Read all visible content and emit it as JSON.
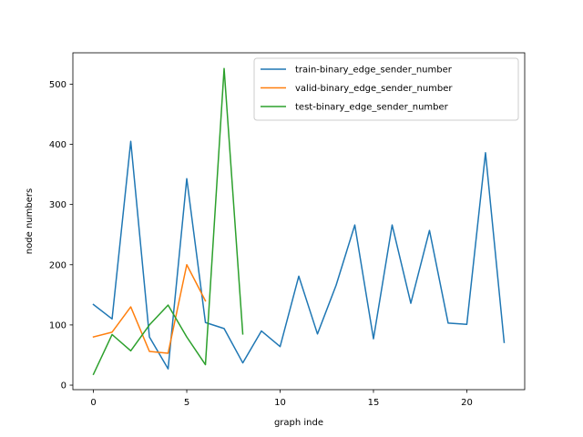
{
  "chart_data": {
    "type": "line",
    "title": "",
    "xlabel": "graph inde",
    "ylabel": "node numbers",
    "xlim": [
      -1.1,
      23.1
    ],
    "ylim": [
      -7.5,
      552
    ],
    "xticks": [
      0,
      5,
      10,
      15,
      20
    ],
    "yticks": [
      0,
      100,
      200,
      300,
      400,
      500
    ],
    "grid": false,
    "legend_position": "upper right",
    "series": [
      {
        "name": "train-binary_edge_sender_number",
        "color": "#1f77b4",
        "x": [
          0,
          1,
          2,
          3,
          4,
          5,
          6,
          7,
          8,
          9,
          10,
          11,
          12,
          13,
          14,
          15,
          16,
          17,
          18,
          19,
          20,
          21,
          22
        ],
        "y": [
          134,
          110,
          405,
          80,
          27,
          343,
          104,
          94,
          37,
          90,
          64,
          181,
          85,
          166,
          266,
          77,
          266,
          136,
          257,
          103,
          101,
          386,
          71
        ]
      },
      {
        "name": "valid-binary_edge_sender_number",
        "color": "#ff7f0e",
        "x": [
          0,
          1,
          2,
          3,
          4,
          5,
          6
        ],
        "y": [
          80,
          88,
          130,
          56,
          53,
          200,
          140
        ]
      },
      {
        "name": "test-binary_edge_sender_number",
        "color": "#2ca02c",
        "x": [
          0,
          1,
          2,
          3,
          4,
          5,
          6,
          7,
          8
        ],
        "y": [
          18,
          84,
          57,
          100,
          133,
          80,
          34,
          526,
          85
        ]
      }
    ]
  }
}
